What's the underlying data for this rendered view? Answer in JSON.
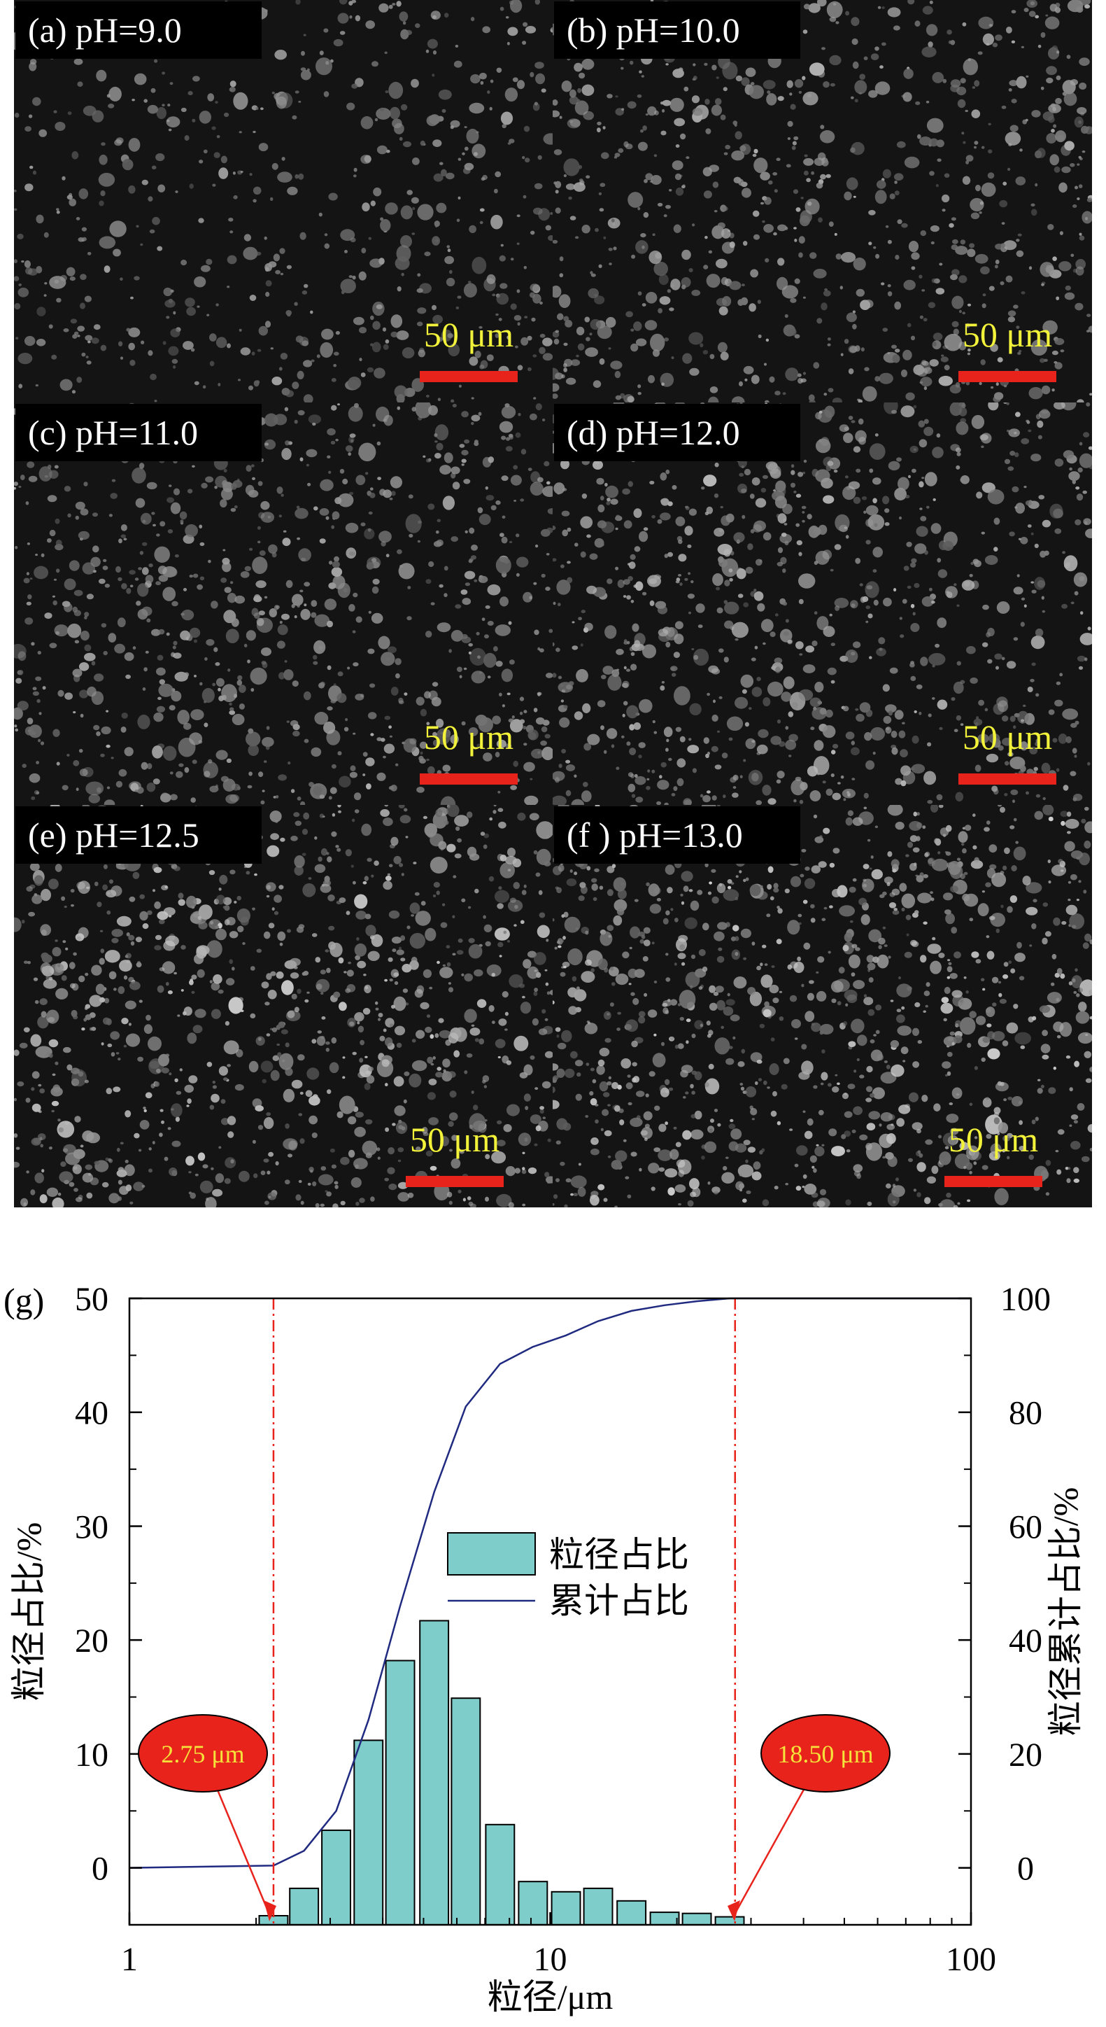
{
  "panels": [
    {
      "label": "(a)  pH=9.0",
      "scale_bar": "50 μm",
      "brightness": 0.45,
      "density": 0.55
    },
    {
      "label": "(b)  pH=10.0",
      "scale_bar": "50 μm",
      "brightness": 0.55,
      "density": 0.75
    },
    {
      "label": "(c)  pH=11.0",
      "scale_bar": "50 μm",
      "brightness": 0.55,
      "density": 0.8
    },
    {
      "label": "(d)  pH=12.0",
      "scale_bar": "50 μm",
      "brightness": 0.6,
      "density": 0.85
    },
    {
      "label": "(e)  pH=12.5",
      "scale_bar": "50 μm",
      "brightness": 0.7,
      "density": 0.95
    },
    {
      "label": "(f )  pH=13.0",
      "scale_bar": "50 μm",
      "brightness": 0.75,
      "density": 1.0
    }
  ],
  "colors": {
    "label_box": "#000000",
    "label_text": "#ffffff",
    "scale_text": "#f2f23a",
    "scale_bar": "#e8231c",
    "bar_fill": "#7fcdcb",
    "bar_stroke": "#000000",
    "line": "#1f2a80",
    "marker_line": "#e8231c",
    "callout_fill": "#e8231c",
    "callout_text": "#f5e23a"
  },
  "chart_data": {
    "type": "bar",
    "panel_label": "(g)",
    "xlabel": "粒径/μm",
    "ylabel_left": "粒径占比/%",
    "ylabel_right": "粒径累计占比/%",
    "x_scale": "log",
    "xlim": [
      1,
      100
    ],
    "x_ticks": [
      1,
      10,
      100
    ],
    "x_tick_labels": [
      "1",
      "10",
      "100"
    ],
    "ylim_left": [
      -5,
      50
    ],
    "y_ticks_left": [
      0,
      10,
      20,
      30,
      40,
      50
    ],
    "ylim_right": [
      -10,
      100
    ],
    "y_ticks_right": [
      0,
      20,
      40,
      60,
      80,
      100
    ],
    "legend_position": "center",
    "bar_series": {
      "name": "粒径占比",
      "x": [
        2.2,
        2.6,
        3.1,
        3.7,
        4.4,
        5.3,
        6.3,
        7.6,
        9.1,
        10.9,
        13.0,
        15.6,
        18.7,
        22.3,
        26.7
      ],
      "values": [
        -4.2,
        -1.8,
        3.3,
        11.2,
        18.2,
        21.7,
        14.9,
        3.8,
        -1.2,
        -2.1,
        -1.8,
        -2.9,
        -3.9,
        -4.0,
        -4.3
      ]
    },
    "line_series": {
      "name": "累计占比",
      "x": [
        1,
        2.2,
        2.6,
        3.1,
        3.7,
        4.4,
        5.3,
        6.3,
        7.6,
        9.1,
        10.9,
        13.0,
        15.6,
        18.7,
        22.3,
        26.7,
        100
      ],
      "values": [
        0,
        0.4,
        3.0,
        10.0,
        26.0,
        46.0,
        66.0,
        81.0,
        88.5,
        91.5,
        93.5,
        96.0,
        97.8,
        98.8,
        99.5,
        100,
        100
      ]
    },
    "markers": [
      {
        "x": 2.2,
        "label": "2.75 μm"
      },
      {
        "x": 27.5,
        "label": "18.50 μm"
      }
    ]
  }
}
